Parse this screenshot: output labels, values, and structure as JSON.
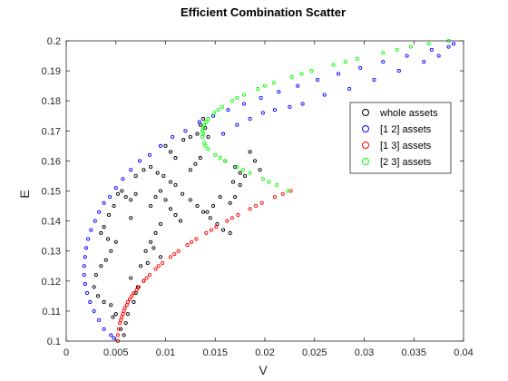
{
  "chart_data": {
    "type": "scatter",
    "title": "Efficient Combination Scatter",
    "xlabel": "V",
    "ylabel": "E",
    "xlim": [
      0,
      0.04
    ],
    "ylim": [
      0.1,
      0.2
    ],
    "xticks": [
      "0",
      "0.005",
      "0.01",
      "0.015",
      "0.02",
      "0.025",
      "0.03",
      "0.035",
      "0.04"
    ],
    "yticks": [
      "0.1",
      "0.11",
      "0.12",
      "0.13",
      "0.14",
      "0.15",
      "0.16",
      "0.17",
      "0.18",
      "0.19",
      "0.2"
    ],
    "grid": false,
    "legend_position": "top-right",
    "series": [
      {
        "name": "whole assets",
        "color": "#000000",
        "marker": "circle-open",
        "points": [
          [
            0.0056,
            0.15
          ],
          [
            0.0052,
            0.149
          ],
          [
            0.006,
            0.148
          ],
          [
            0.007,
            0.149
          ],
          [
            0.0065,
            0.147
          ],
          [
            0.0048,
            0.145
          ],
          [
            0.0043,
            0.142
          ],
          [
            0.0038,
            0.138
          ],
          [
            0.0035,
            0.136
          ],
          [
            0.0042,
            0.134
          ],
          [
            0.005,
            0.133
          ],
          [
            0.0045,
            0.13
          ],
          [
            0.004,
            0.127
          ],
          [
            0.0035,
            0.125
          ],
          [
            0.003,
            0.122
          ],
          [
            0.0028,
            0.118
          ],
          [
            0.0032,
            0.115
          ],
          [
            0.0038,
            0.113
          ],
          [
            0.0045,
            0.112
          ],
          [
            0.005,
            0.109
          ],
          [
            0.0047,
            0.108
          ],
          [
            0.0055,
            0.104
          ],
          [
            0.006,
            0.106
          ],
          [
            0.0065,
            0.121
          ],
          [
            0.007,
            0.116
          ],
          [
            0.0075,
            0.125
          ],
          [
            0.008,
            0.13
          ],
          [
            0.0085,
            0.133
          ],
          [
            0.009,
            0.136
          ],
          [
            0.0095,
            0.139
          ],
          [
            0.0065,
            0.141
          ],
          [
            0.007,
            0.155
          ],
          [
            0.0078,
            0.157
          ],
          [
            0.0085,
            0.158
          ],
          [
            0.0092,
            0.156
          ],
          [
            0.0098,
            0.155
          ],
          [
            0.0105,
            0.153
          ],
          [
            0.011,
            0.152
          ],
          [
            0.0117,
            0.149
          ],
          [
            0.0125,
            0.147
          ],
          [
            0.0132,
            0.145
          ],
          [
            0.0138,
            0.143
          ],
          [
            0.0145,
            0.141
          ],
          [
            0.0152,
            0.139
          ],
          [
            0.0158,
            0.137
          ],
          [
            0.0165,
            0.136
          ],
          [
            0.01,
            0.165
          ],
          [
            0.0105,
            0.163
          ],
          [
            0.011,
            0.161
          ],
          [
            0.0118,
            0.167
          ],
          [
            0.0125,
            0.168
          ],
          [
            0.0132,
            0.169
          ],
          [
            0.0135,
            0.172
          ],
          [
            0.0138,
            0.174
          ],
          [
            0.014,
            0.171
          ],
          [
            0.0143,
            0.168
          ],
          [
            0.0085,
            0.145
          ],
          [
            0.009,
            0.148
          ],
          [
            0.0095,
            0.15
          ],
          [
            0.01,
            0.147
          ],
          [
            0.0105,
            0.144
          ],
          [
            0.011,
            0.142
          ],
          [
            0.0115,
            0.14
          ],
          [
            0.0125,
            0.157
          ],
          [
            0.013,
            0.159
          ],
          [
            0.0135,
            0.161
          ],
          [
            0.016,
            0.16
          ],
          [
            0.017,
            0.158
          ],
          [
            0.018,
            0.155
          ],
          [
            0.0175,
            0.152
          ],
          [
            0.017,
            0.148
          ],
          [
            0.0165,
            0.146
          ],
          [
            0.0082,
            0.126
          ],
          [
            0.0088,
            0.131
          ],
          [
            0.0095,
            0.128
          ],
          [
            0.0078,
            0.12
          ],
          [
            0.0072,
            0.118
          ],
          [
            0.0068,
            0.113
          ],
          [
            0.0062,
            0.109
          ],
          [
            0.0058,
            0.102
          ],
          [
            0.0185,
            0.163
          ],
          [
            0.019,
            0.16
          ],
          [
            0.0195,
            0.157
          ],
          [
            0.0175,
            0.156
          ],
          [
            0.0168,
            0.153
          ],
          [
            0.0155,
            0.148
          ],
          [
            0.0148,
            0.145
          ],
          [
            0.0142,
            0.143
          ]
        ]
      },
      {
        "name": "[1 2] assets",
        "color": "#0000ff",
        "marker": "circle-open",
        "points": [
          [
            0.0048,
            0.101
          ],
          [
            0.0045,
            0.102
          ],
          [
            0.0038,
            0.104
          ],
          [
            0.0033,
            0.107
          ],
          [
            0.0028,
            0.11
          ],
          [
            0.0024,
            0.113
          ],
          [
            0.0021,
            0.116
          ],
          [
            0.0019,
            0.119
          ],
          [
            0.0018,
            0.122
          ],
          [
            0.0018,
            0.125
          ],
          [
            0.0019,
            0.128
          ],
          [
            0.002,
            0.131
          ],
          [
            0.0022,
            0.134
          ],
          [
            0.0025,
            0.137
          ],
          [
            0.0029,
            0.14
          ],
          [
            0.0033,
            0.143
          ],
          [
            0.0038,
            0.146
          ],
          [
            0.0044,
            0.148
          ],
          [
            0.005,
            0.151
          ],
          [
            0.0057,
            0.154
          ],
          [
            0.0065,
            0.157
          ],
          [
            0.0074,
            0.16
          ],
          [
            0.0084,
            0.162
          ],
          [
            0.0095,
            0.165
          ],
          [
            0.0107,
            0.168
          ],
          [
            0.012,
            0.17
          ],
          [
            0.0134,
            0.173
          ],
          [
            0.0148,
            0.175
          ],
          [
            0.0163,
            0.177
          ],
          [
            0.0179,
            0.179
          ],
          [
            0.0196,
            0.181
          ],
          [
            0.0214,
            0.183
          ],
          [
            0.0233,
            0.185
          ],
          [
            0.0253,
            0.187
          ],
          [
            0.0274,
            0.189
          ],
          [
            0.0296,
            0.191
          ],
          [
            0.0319,
            0.193
          ],
          [
            0.0343,
            0.195
          ],
          [
            0.0368,
            0.197
          ],
          [
            0.039,
            0.199
          ],
          [
            0.0158,
            0.169
          ],
          [
            0.0172,
            0.172
          ],
          [
            0.0185,
            0.174
          ],
          [
            0.0198,
            0.176
          ],
          [
            0.021,
            0.177
          ],
          [
            0.0225,
            0.178
          ],
          [
            0.0238,
            0.179
          ],
          [
            0.026,
            0.182
          ],
          [
            0.0285,
            0.184
          ],
          [
            0.031,
            0.187
          ],
          [
            0.0335,
            0.19
          ],
          [
            0.036,
            0.193
          ],
          [
            0.0375,
            0.195
          ],
          [
            0.0385,
            0.198
          ]
        ]
      },
      {
        "name": "[1 3] assets",
        "color": "#ff0000",
        "marker": "circle-open",
        "points": [
          [
            0.0052,
            0.1
          ],
          [
            0.0052,
            0.102
          ],
          [
            0.0053,
            0.104
          ],
          [
            0.0054,
            0.106
          ],
          [
            0.0056,
            0.108
          ],
          [
            0.0058,
            0.11
          ],
          [
            0.0061,
            0.112
          ],
          [
            0.0064,
            0.114
          ],
          [
            0.0068,
            0.116
          ],
          [
            0.0073,
            0.118
          ],
          [
            0.0078,
            0.12
          ],
          [
            0.0084,
            0.122
          ],
          [
            0.009,
            0.124
          ],
          [
            0.0097,
            0.126
          ],
          [
            0.0105,
            0.128
          ],
          [
            0.0113,
            0.13
          ],
          [
            0.0122,
            0.132
          ],
          [
            0.0131,
            0.134
          ],
          [
            0.0141,
            0.136
          ],
          [
            0.0151,
            0.138
          ],
          [
            0.0162,
            0.14
          ],
          [
            0.0173,
            0.142
          ],
          [
            0.0185,
            0.144
          ],
          [
            0.0197,
            0.146
          ],
          [
            0.021,
            0.148
          ],
          [
            0.0226,
            0.15
          ],
          [
            0.0066,
            0.115
          ],
          [
            0.0071,
            0.117
          ],
          [
            0.0081,
            0.121
          ],
          [
            0.0093,
            0.125
          ],
          [
            0.0109,
            0.129
          ],
          [
            0.0126,
            0.133
          ],
          [
            0.0146,
            0.137
          ],
          [
            0.0167,
            0.141
          ],
          [
            0.0191,
            0.145
          ],
          [
            0.0218,
            0.149
          ],
          [
            0.0055,
            0.107
          ],
          [
            0.0057,
            0.109
          ],
          [
            0.0059,
            0.111
          ],
          [
            0.0062,
            0.113
          ]
        ]
      },
      {
        "name": "[2 3] assets",
        "color": "#00ff00",
        "marker": "circle-open",
        "points": [
          [
            0.0223,
            0.15
          ],
          [
            0.0212,
            0.152
          ],
          [
            0.0198,
            0.154
          ],
          [
            0.0185,
            0.156
          ],
          [
            0.0172,
            0.158
          ],
          [
            0.016,
            0.16
          ],
          [
            0.015,
            0.162
          ],
          [
            0.0143,
            0.164
          ],
          [
            0.0139,
            0.166
          ],
          [
            0.0137,
            0.168
          ],
          [
            0.0137,
            0.17
          ],
          [
            0.0139,
            0.172
          ],
          [
            0.0143,
            0.174
          ],
          [
            0.0149,
            0.176
          ],
          [
            0.0157,
            0.178
          ],
          [
            0.0167,
            0.18
          ],
          [
            0.0179,
            0.182
          ],
          [
            0.0193,
            0.184
          ],
          [
            0.0209,
            0.186
          ],
          [
            0.0227,
            0.188
          ],
          [
            0.0247,
            0.19
          ],
          [
            0.0269,
            0.192
          ],
          [
            0.0293,
            0.194
          ],
          [
            0.0319,
            0.196
          ],
          [
            0.0347,
            0.198
          ],
          [
            0.0385,
            0.2
          ],
          [
            0.0204,
            0.153
          ],
          [
            0.0178,
            0.157
          ],
          [
            0.0155,
            0.161
          ],
          [
            0.014,
            0.165
          ],
          [
            0.0138,
            0.169
          ],
          [
            0.0141,
            0.173
          ],
          [
            0.0153,
            0.177
          ],
          [
            0.0172,
            0.181
          ],
          [
            0.02,
            0.185
          ],
          [
            0.0237,
            0.189
          ],
          [
            0.0281,
            0.193
          ],
          [
            0.0333,
            0.197
          ],
          [
            0.0365,
            0.199
          ],
          [
            0.0138,
            0.171
          ]
        ]
      }
    ]
  }
}
